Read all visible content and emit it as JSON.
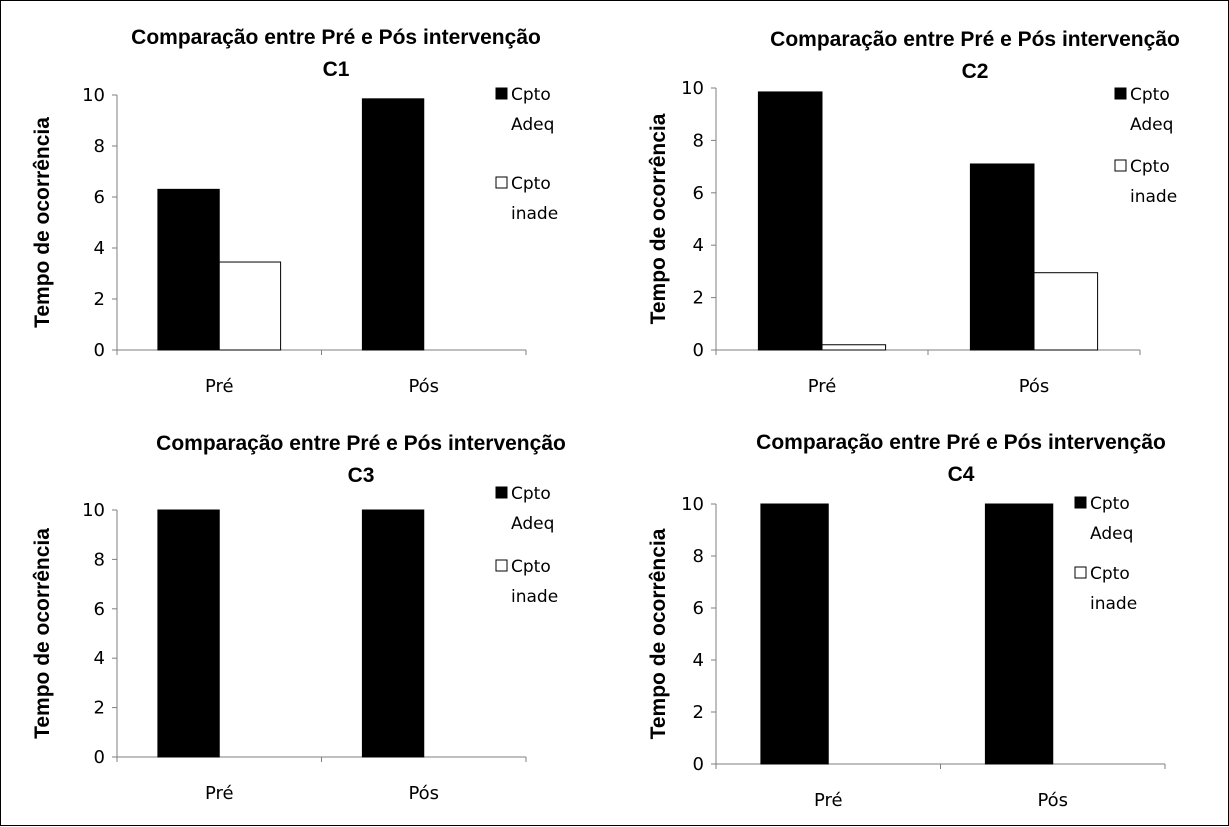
{
  "chart_data": [
    {
      "type": "bar",
      "title": "Comparação entre Pré e Pós intervenção",
      "subtitle": "C1",
      "ylabel": "Tempo de ocorrência",
      "ylim": [
        0,
        10
      ],
      "yticks": [
        "0",
        "2",
        "4",
        "6",
        "8",
        "10"
      ],
      "categories": [
        "Pré",
        "Pós"
      ],
      "series": [
        {
          "name": "Cpto Adeq",
          "color": "#000000",
          "values": [
            6.3,
            9.85
          ]
        },
        {
          "name": "Cpto inade",
          "color": "#ffffff",
          "values": [
            3.45,
            0
          ]
        }
      ],
      "legend_position": "right",
      "grid": false
    },
    {
      "type": "bar",
      "title": "Comparação entre Pré e Pós intervenção",
      "subtitle": "C2",
      "ylabel": "Tempo de ocorrência",
      "ylim": [
        0,
        10
      ],
      "yticks": [
        "0",
        "2",
        "4",
        "6",
        "8",
        "10"
      ],
      "categories": [
        "Pré",
        "Pós"
      ],
      "series": [
        {
          "name": "Cpto Adeq",
          "color": "#000000",
          "values": [
            9.85,
            7.1
          ]
        },
        {
          "name": "Cpto inade",
          "color": "#ffffff",
          "values": [
            0.2,
            2.95
          ]
        }
      ],
      "legend_position": "right",
      "grid": false
    },
    {
      "type": "bar",
      "title": "Comparação entre Pré e Pós intervenção",
      "subtitle": "C3",
      "ylabel": "Tempo de ocorrência",
      "ylim": [
        0,
        10
      ],
      "yticks": [
        "0",
        "2",
        "4",
        "6",
        "8",
        "10"
      ],
      "categories": [
        "Pré",
        "Pós"
      ],
      "series": [
        {
          "name": "Cpto Adeq",
          "color": "#000000",
          "values": [
            10,
            10
          ]
        },
        {
          "name": "Cpto inade",
          "color": "#ffffff",
          "values": [
            0,
            0
          ]
        }
      ],
      "legend_position": "right",
      "grid": false
    },
    {
      "type": "bar",
      "title": "Comparação entre Pré e Pós intervenção",
      "subtitle": "C4",
      "ylabel": "Tempo de ocorrência",
      "ylim": [
        0,
        10
      ],
      "yticks": [
        "0",
        "2",
        "4",
        "6",
        "8",
        "10"
      ],
      "categories": [
        "Pré",
        "Pós"
      ],
      "series": [
        {
          "name": "Cpto Adeq",
          "color": "#000000",
          "values": [
            10,
            10
          ]
        },
        {
          "name": "Cpto inade",
          "color": "#ffffff",
          "values": [
            0,
            0
          ]
        }
      ],
      "legend_position": "right",
      "grid": false
    }
  ]
}
